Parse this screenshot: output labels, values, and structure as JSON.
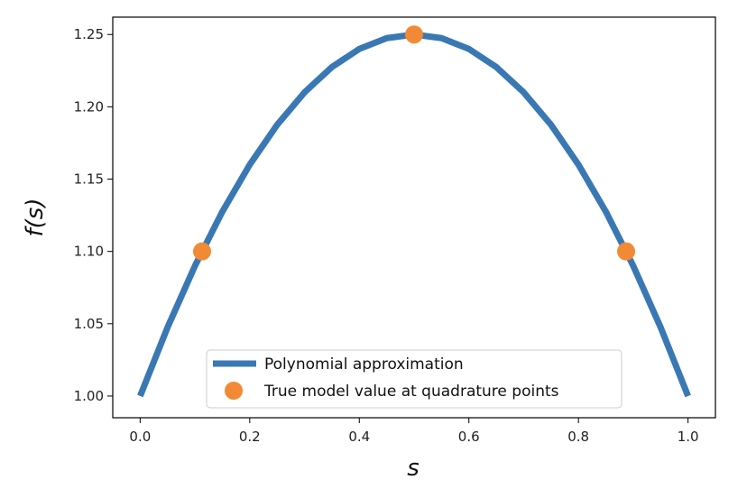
{
  "chart_data": {
    "type": "line",
    "title": "",
    "xlabel": "s",
    "ylabel": "f(s)",
    "xlim": [
      -0.05,
      1.05
    ],
    "ylim": [
      0.985,
      1.262
    ],
    "x_ticks": [
      0.0,
      0.2,
      0.4,
      0.6,
      0.8,
      1.0
    ],
    "x_tick_labels": [
      "0.0",
      "0.2",
      "0.4",
      "0.6",
      "0.8",
      "1.0"
    ],
    "y_ticks": [
      1.0,
      1.05,
      1.1,
      1.15,
      1.2,
      1.25
    ],
    "y_tick_labels": [
      "1.00",
      "1.05",
      "1.10",
      "1.15",
      "1.20",
      "1.25"
    ],
    "grid": false,
    "legend_position": "lower-center",
    "series": [
      {
        "name": "Polynomial approximation",
        "kind": "line",
        "color": "#3a78b4",
        "x": [
          0.0,
          0.05,
          0.1,
          0.15,
          0.2,
          0.25,
          0.3,
          0.35,
          0.4,
          0.45,
          0.5,
          0.55,
          0.6,
          0.65,
          0.7,
          0.75,
          0.8,
          0.85,
          0.9,
          0.95,
          1.0
        ],
        "y": [
          1.0,
          1.0475,
          1.09,
          1.1275,
          1.16,
          1.1875,
          1.21,
          1.2275,
          1.24,
          1.2475,
          1.25,
          1.2475,
          1.24,
          1.2275,
          1.21,
          1.1875,
          1.16,
          1.1275,
          1.09,
          1.0475,
          1.0
        ]
      },
      {
        "name": "True model value at quadrature points",
        "kind": "scatter",
        "color": "#f28a35",
        "x": [
          0.113,
          0.5,
          0.887
        ],
        "y": [
          1.1,
          1.25,
          1.1
        ]
      }
    ]
  }
}
